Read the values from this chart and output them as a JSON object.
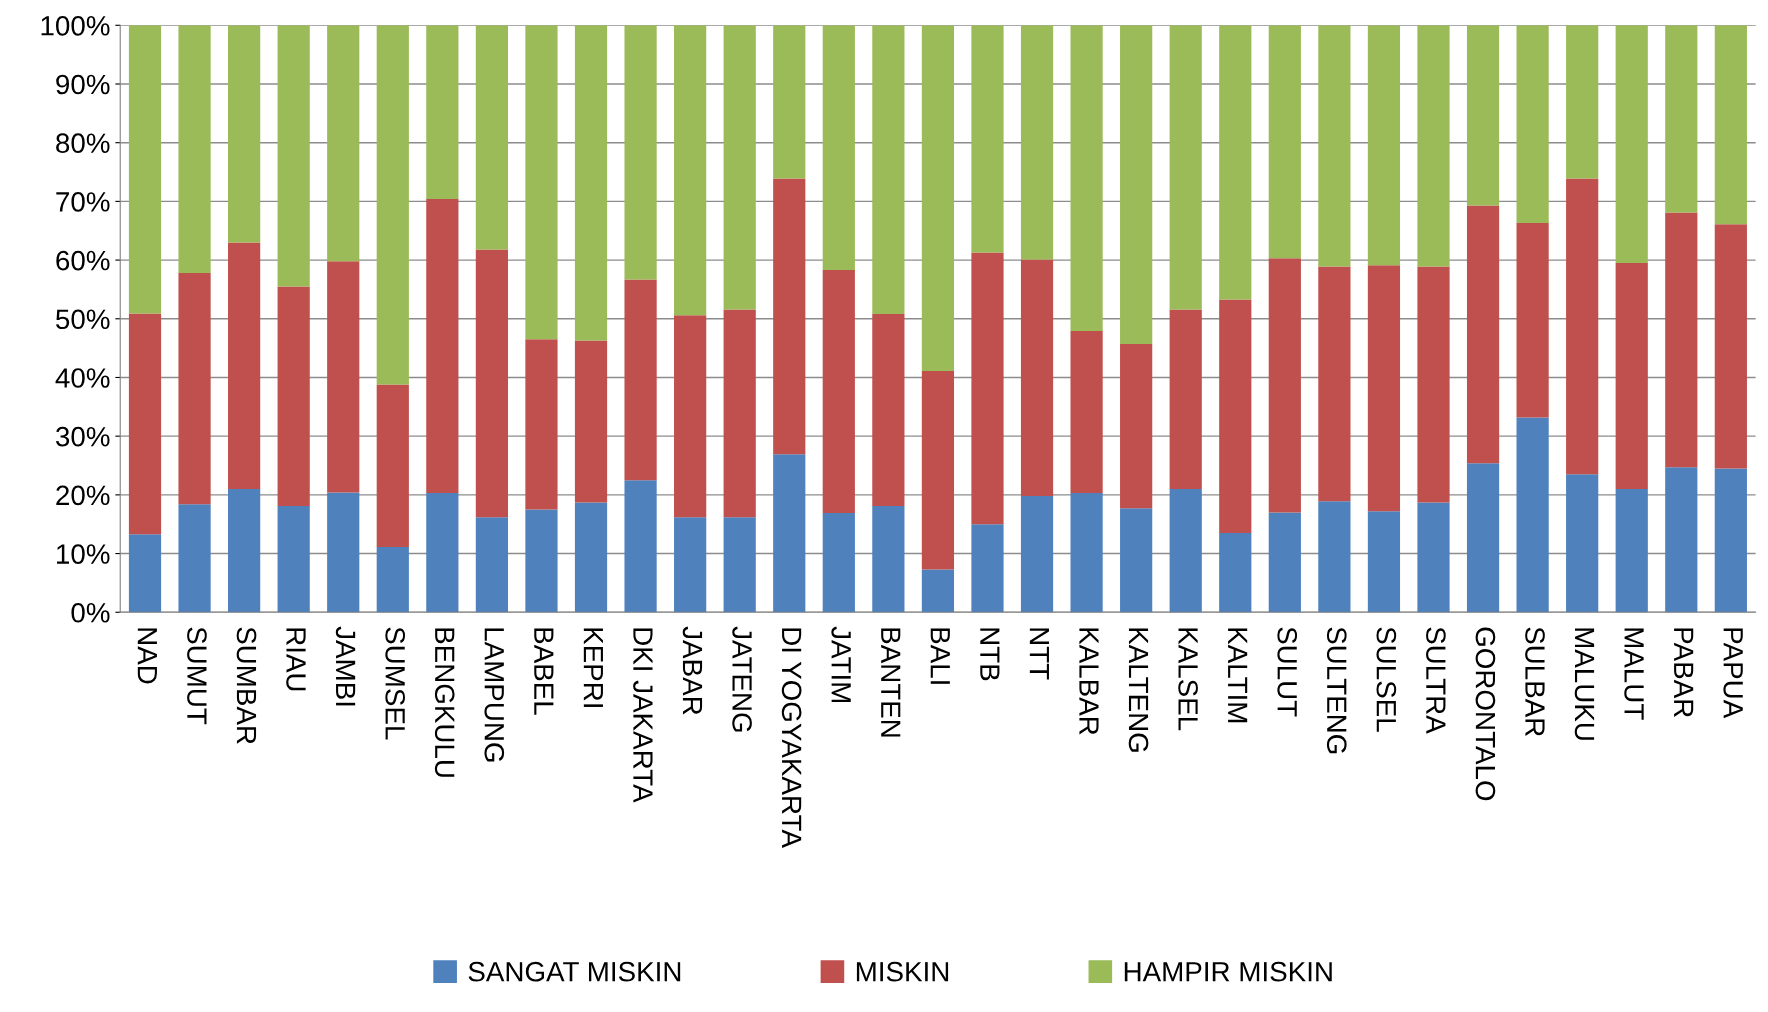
{
  "chart_data": {
    "type": "bar",
    "stacked": true,
    "grid": "y",
    "legend": "bottom",
    "categories": [
      "NAD",
      "SUMUT",
      "SUMBAR",
      "RIAU",
      "JAMBI",
      "SUMSEL",
      "BENGKULU",
      "LAMPUNG",
      "BABEL",
      "KEPRI",
      "DKI JAKARTA",
      "JABAR",
      "JATENG",
      "DI YOGYAKARTA",
      "JATIM",
      "BANTEN",
      "BALI",
      "NTB",
      "NTT",
      "KALBAR",
      "KALTENG",
      "KALSEL",
      "KALTIM",
      "SULUT",
      "SULTENG",
      "SULSEL",
      "SULTRA",
      "GORONTALO",
      "SULBAR",
      "MALUKU",
      "MALUT",
      "PABAR",
      "PAPUA"
    ],
    "series": [
      {
        "name": "SANGAT MISKIN",
        "color": "#4f81bd",
        "values": [
          13.3,
          18.4,
          21.0,
          18.1,
          20.4,
          11.1,
          20.3,
          16.2,
          17.5,
          18.7,
          22.5,
          16.2,
          16.2,
          26.9,
          16.9,
          18.1,
          7.3,
          15.0,
          19.8,
          20.3,
          17.7,
          21.0,
          13.5,
          17.0,
          18.9,
          17.2,
          18.7,
          25.4,
          33.2,
          23.5,
          21.0,
          24.7,
          24.5
        ]
      },
      {
        "name": "MISKIN",
        "color": "#c0504d",
        "values": [
          37.6,
          39.4,
          42.0,
          37.4,
          39.4,
          27.7,
          50.1,
          45.6,
          29.0,
          27.6,
          34.2,
          34.4,
          35.4,
          47.0,
          41.4,
          32.7,
          33.8,
          46.3,
          40.3,
          27.6,
          28.0,
          30.6,
          39.8,
          43.3,
          40.0,
          41.9,
          40.2,
          43.9,
          33.1,
          50.4,
          38.5,
          43.4,
          41.6
        ]
      },
      {
        "name": "HAMPIR MISKIN",
        "color": "#9bbb59",
        "values": [
          49.1,
          42.2,
          37.0,
          44.5,
          40.2,
          61.2,
          29.6,
          38.2,
          53.5,
          53.7,
          43.3,
          49.4,
          48.4,
          26.1,
          41.7,
          49.2,
          58.9,
          38.7,
          39.9,
          52.1,
          54.3,
          48.4,
          46.7,
          39.7,
          41.1,
          40.9,
          41.1,
          30.7,
          33.7,
          26.1,
          40.5,
          31.9,
          33.9
        ]
      }
    ],
    "ylim": [
      0,
      100
    ],
    "yticks": [
      {
        "value": 0,
        "label": "0%"
      },
      {
        "value": 10,
        "label": "10%"
      },
      {
        "value": 20,
        "label": "20%"
      },
      {
        "value": 30,
        "label": "30%"
      },
      {
        "value": 40,
        "label": "40%"
      },
      {
        "value": 50,
        "label": "50%"
      },
      {
        "value": 60,
        "label": "60%"
      },
      {
        "value": 70,
        "label": "70%"
      },
      {
        "value": 80,
        "label": "80%"
      },
      {
        "value": 90,
        "label": "90%"
      },
      {
        "value": 100,
        "label": "100%"
      }
    ]
  }
}
